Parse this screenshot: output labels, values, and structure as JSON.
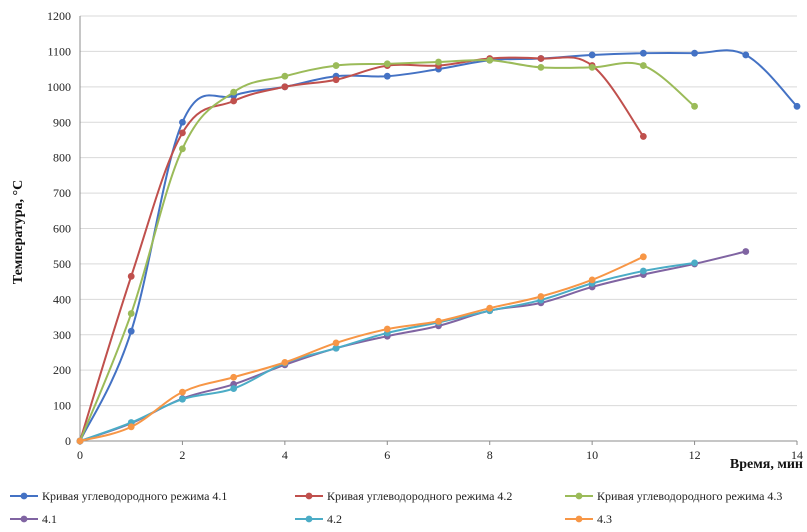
{
  "chart_data": {
    "type": "line",
    "xlabel": "Время, мин",
    "ylabel": "Температура, °С",
    "xlim": [
      0,
      14
    ],
    "ylim": [
      0,
      1200
    ],
    "x_ticks": [
      "0",
      "2",
      "4",
      "6",
      "8",
      "10",
      "12",
      "14"
    ],
    "y_ticks": [
      "0",
      "100",
      "200",
      "300",
      "400",
      "500",
      "600",
      "700",
      "800",
      "900",
      "1000",
      "1100",
      "1200"
    ],
    "grid": "horizontal",
    "legend_position": "bottom",
    "series": [
      {
        "name": "Кривая углеводородного режима 4.1",
        "color": "#4472C4",
        "x": [
          0,
          1,
          2,
          3,
          4,
          5,
          6,
          7,
          8,
          9,
          10,
          11,
          12,
          13,
          14
        ],
        "y": [
          0,
          310,
          900,
          975,
          1000,
          1030,
          1030,
          1050,
          1075,
          1080,
          1090,
          1095,
          1095,
          1090,
          945
        ]
      },
      {
        "name": "Кривая углеводородного режима 4.2",
        "color": "#C0504D",
        "x": [
          0,
          1,
          2,
          3,
          4,
          5,
          6,
          7,
          8,
          9,
          10,
          11
        ],
        "y": [
          0,
          465,
          870,
          960,
          1000,
          1020,
          1060,
          1060,
          1080,
          1080,
          1060,
          860
        ]
      },
      {
        "name": "Кривая углеводородного режима 4.3",
        "color": "#9BBB59",
        "x": [
          0,
          1,
          2,
          3,
          4,
          5,
          6,
          7,
          8,
          9,
          10,
          11,
          12
        ],
        "y": [
          0,
          360,
          825,
          985,
          1030,
          1060,
          1065,
          1070,
          1075,
          1055,
          1055,
          1060,
          945
        ]
      },
      {
        "name": "4.1",
        "color": "#8064A2",
        "x": [
          0,
          1,
          2,
          3,
          4,
          5,
          6,
          7,
          8,
          9,
          10,
          11,
          12,
          13
        ],
        "y": [
          0,
          50,
          120,
          160,
          215,
          262,
          296,
          325,
          368,
          390,
          435,
          470,
          500,
          535
        ]
      },
      {
        "name": "4.2",
        "color": "#4BACC6",
        "x": [
          0,
          1,
          2,
          3,
          4,
          5,
          6,
          7,
          8,
          9,
          10,
          11,
          12
        ],
        "y": [
          0,
          52,
          118,
          148,
          220,
          262,
          305,
          335,
          368,
          398,
          445,
          480,
          503
        ]
      },
      {
        "name": "4.3",
        "color": "#F79646",
        "x": [
          0,
          1,
          2,
          3,
          4,
          5,
          6,
          7,
          8,
          9,
          10,
          11
        ],
        "y": [
          0,
          40,
          138,
          180,
          222,
          277,
          316,
          338,
          375,
          408,
          455,
          520
        ]
      }
    ]
  }
}
